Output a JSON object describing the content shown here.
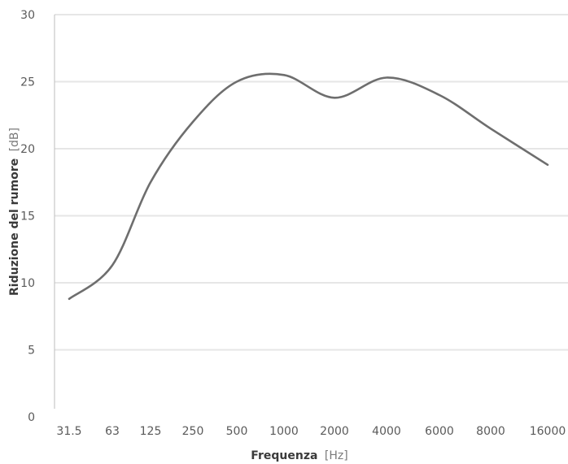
{
  "chart_data": {
    "type": "line",
    "xlabel": "Frequenza",
    "xlabel_unit": "[Hz]",
    "ylabel": "Riduzione del rumore",
    "ylabel_unit": "[dB]",
    "ylim": [
      0,
      30
    ],
    "yticks": [
      "0",
      "5",
      "10",
      "15",
      "20",
      "25",
      "30"
    ],
    "categories": [
      "31.5",
      "63",
      "125",
      "250",
      "500",
      "1000",
      "2000",
      "4000",
      "6000",
      "8000",
      "16000"
    ],
    "grid": true,
    "legend": "none",
    "colors": {
      "line": "#6e6e6e",
      "grid": "#e6e6e6",
      "axis": "#bdbdbd"
    },
    "series": [
      {
        "x": [
          "31.5",
          "63",
          "125",
          "250",
          "500",
          "1000",
          "2000",
          "4000",
          "6000",
          "8000",
          "16000"
        ],
        "values": [
          8.8,
          11.3,
          17.5,
          22.0,
          25.0,
          25.5,
          23.8,
          25.3,
          24.0,
          21.5,
          18.8
        ]
      }
    ]
  }
}
